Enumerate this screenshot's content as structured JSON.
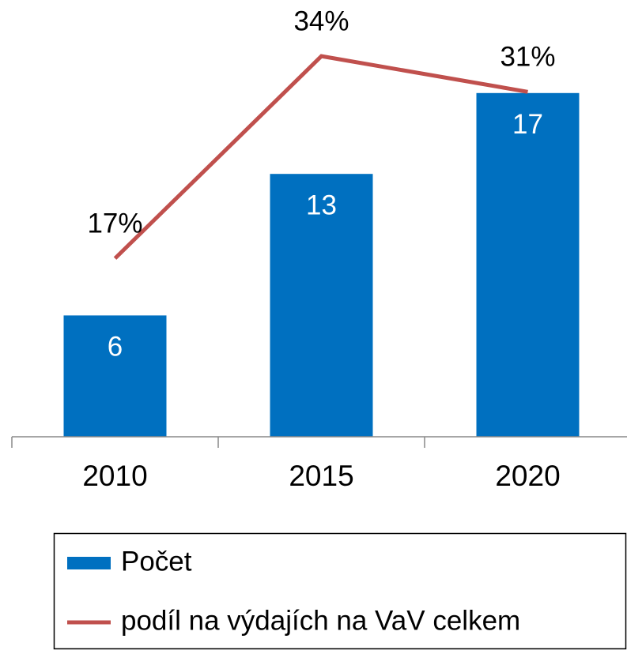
{
  "chart_data": {
    "type": "bar",
    "categories": [
      "2010",
      "2015",
      "2020"
    ],
    "series": [
      {
        "name": "Počet",
        "type": "bar",
        "color": "#0070c0",
        "values": [
          6,
          13,
          17
        ]
      },
      {
        "name": "podíl na výdajích na VaV celkem",
        "type": "line",
        "axis": "y2",
        "color": "#c0504d",
        "values": [
          17,
          34,
          31
        ],
        "value_labels": [
          "17%",
          "34%",
          "31%"
        ]
      }
    ],
    "ylim": [
      0,
      20
    ],
    "y2lim": [
      2,
      36
    ],
    "legend": "bottom"
  }
}
